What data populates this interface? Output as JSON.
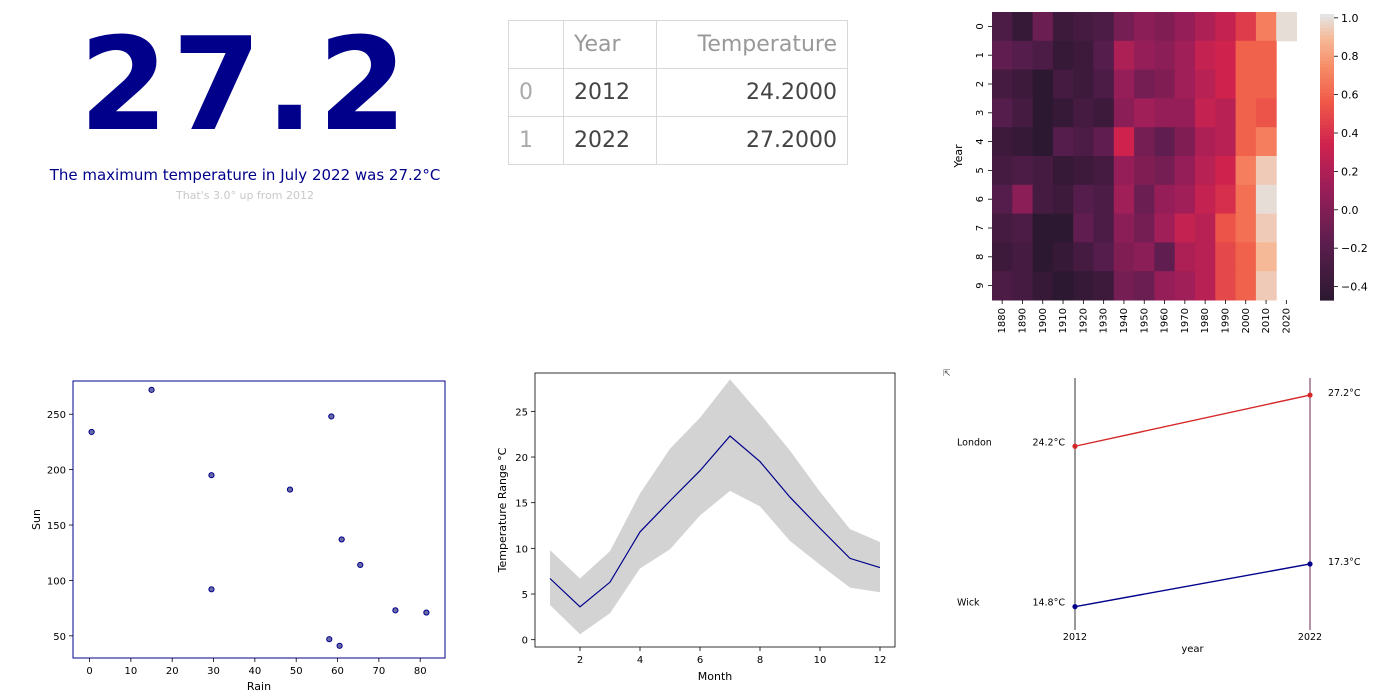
{
  "kpi": {
    "value": "27.2",
    "caption": "The maximum temperature in July 2022 was 27.2°C",
    "subcaption": "That's 3.0° up from 2012"
  },
  "table": {
    "headers": [
      "",
      "Year",
      "Temperature"
    ],
    "rows": [
      [
        "0",
        "2012",
        "24.2000"
      ],
      [
        "1",
        "2022",
        "27.2000"
      ]
    ]
  },
  "colors": {
    "navy": "#00008b",
    "red": "#d62728",
    "band": "#d3d3d3"
  },
  "chart_data": [
    {
      "type": "heatmap",
      "title": "",
      "xlabel": "",
      "ylabel": "Year",
      "x_tick_labels": [
        "1880",
        "1890",
        "1900",
        "1910",
        "1920",
        "1930",
        "1940",
        "1950",
        "1960",
        "1970",
        "1980",
        "1990",
        "2000",
        "2010",
        "2020"
      ],
      "y_tick_labels": [
        "0",
        "1",
        "2",
        "3",
        "4",
        "5",
        "6",
        "7",
        "8",
        "9"
      ],
      "colorbar_ticks": [
        "1.0",
        "0.8",
        "0.6",
        "0.4",
        "0.2",
        "0.0",
        "−0.2",
        "−0.4"
      ],
      "colorbar_range": [
        -0.47,
        1.02
      ],
      "values": [
        [
          -0.25,
          -0.4,
          -0.1,
          -0.35,
          -0.3,
          -0.25,
          -0.05,
          0.05,
          0.0,
          0.1,
          0.2,
          0.3,
          0.45,
          0.7,
          1.0
        ],
        [
          -0.15,
          -0.2,
          -0.25,
          -0.4,
          -0.35,
          -0.2,
          0.2,
          0.1,
          0.05,
          0.15,
          0.3,
          0.35,
          0.6,
          0.6,
          null
        ],
        [
          -0.3,
          -0.35,
          -0.45,
          -0.3,
          -0.35,
          -0.25,
          0.1,
          -0.05,
          0.0,
          0.15,
          0.25,
          0.35,
          0.6,
          0.6,
          null
        ],
        [
          -0.2,
          -0.3,
          -0.45,
          -0.4,
          -0.3,
          -0.35,
          0.05,
          0.15,
          0.1,
          0.1,
          0.3,
          0.25,
          0.6,
          0.55,
          null
        ],
        [
          -0.35,
          -0.4,
          -0.45,
          -0.2,
          -0.25,
          -0.15,
          0.35,
          -0.05,
          -0.15,
          0.0,
          0.2,
          0.25,
          0.6,
          0.7,
          null
        ],
        [
          -0.3,
          -0.25,
          -0.3,
          -0.4,
          -0.35,
          -0.3,
          0.1,
          0.0,
          -0.05,
          0.1,
          0.25,
          0.35,
          0.7,
          0.95,
          null
        ],
        [
          -0.2,
          0.05,
          -0.3,
          -0.35,
          -0.2,
          -0.25,
          0.15,
          -0.1,
          0.1,
          0.15,
          0.3,
          0.4,
          0.65,
          1.0,
          null
        ],
        [
          -0.3,
          -0.25,
          -0.45,
          -0.45,
          -0.15,
          -0.25,
          0.05,
          -0.05,
          0.15,
          0.3,
          0.25,
          0.55,
          0.65,
          0.95,
          null
        ],
        [
          -0.35,
          -0.3,
          -0.45,
          -0.4,
          -0.3,
          -0.2,
          0.0,
          0.05,
          -0.15,
          0.2,
          0.25,
          0.5,
          0.6,
          0.9,
          null
        ],
        [
          -0.25,
          -0.3,
          -0.4,
          -0.45,
          -0.4,
          -0.35,
          -0.05,
          -0.1,
          0.1,
          0.15,
          0.25,
          0.5,
          0.6,
          0.95,
          null
        ]
      ]
    },
    {
      "type": "scatter",
      "xlabel": "Rain",
      "ylabel": "Sun",
      "xlim": [
        -4,
        86
      ],
      "ylim": [
        30,
        280
      ],
      "xticks": [
        0,
        10,
        20,
        30,
        40,
        50,
        60,
        70,
        80
      ],
      "yticks": [
        50,
        100,
        150,
        200,
        250
      ],
      "points": [
        {
          "x": 0.5,
          "y": 234
        },
        {
          "x": 15,
          "y": 272
        },
        {
          "x": 29.5,
          "y": 195
        },
        {
          "x": 29.5,
          "y": 92
        },
        {
          "x": 48.5,
          "y": 182
        },
        {
          "x": 58.5,
          "y": 248
        },
        {
          "x": 61,
          "y": 137
        },
        {
          "x": 65.5,
          "y": 114
        },
        {
          "x": 58,
          "y": 47
        },
        {
          "x": 60.5,
          "y": 41
        },
        {
          "x": 74,
          "y": 73
        },
        {
          "x": 81.5,
          "y": 71
        }
      ]
    },
    {
      "type": "line",
      "xlabel": "Month",
      "ylabel": "Temperature Range °C",
      "xlim": [
        0.5,
        12.5
      ],
      "ylim": [
        -0.8,
        29.2
      ],
      "xticks": [
        2,
        4,
        6,
        8,
        10,
        12
      ],
      "yticks": [
        0,
        5,
        10,
        15,
        20,
        25
      ],
      "x": [
        1,
        2,
        3,
        4,
        5,
        6,
        7,
        8,
        9,
        10,
        11,
        12
      ],
      "mean": [
        6.7,
        3.6,
        6.3,
        11.8,
        15.2,
        18.5,
        22.3,
        19.5,
        15.6,
        12.2,
        8.9,
        7.9
      ],
      "band_low": [
        3.8,
        0.6,
        2.9,
        7.8,
        9.9,
        13.6,
        16.3,
        14.6,
        10.8,
        8.2,
        5.7,
        5.2
      ],
      "band_high": [
        9.8,
        6.7,
        9.7,
        16.0,
        20.9,
        24.3,
        28.5,
        24.7,
        20.7,
        16.2,
        12.1,
        10.7
      ]
    },
    {
      "type": "line",
      "subtype": "slope",
      "xlabel": "year",
      "corner_label": "⇱",
      "x_tick_labels": [
        "2012",
        "2022"
      ],
      "ylim": [
        13.9,
        28.2
      ],
      "series": [
        {
          "name": "London",
          "values": [
            24.2,
            27.2
          ],
          "labels": [
            "24.2°C",
            "27.2°C"
          ],
          "color": "#d62728"
        },
        {
          "name": "Wick",
          "values": [
            14.8,
            17.3
          ],
          "labels": [
            "14.8°C",
            "17.3°C"
          ],
          "color": "#00008b"
        }
      ]
    }
  ]
}
